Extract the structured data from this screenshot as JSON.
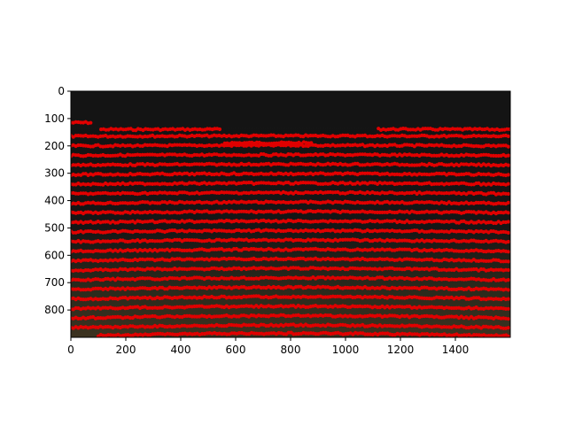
{
  "chart_data": {
    "type": "scatter",
    "title": "",
    "xlabel": "",
    "ylabel": "",
    "xlim": [
      0,
      1600
    ],
    "ylim": [
      900,
      0
    ],
    "y_inverted": true,
    "grid": false,
    "background": "image",
    "x_ticks": [
      0,
      200,
      400,
      600,
      800,
      1000,
      1200,
      1400
    ],
    "y_ticks": [
      0,
      100,
      200,
      300,
      400,
      500,
      600,
      700,
      800
    ],
    "x_tick_labels": [
      "0",
      "200",
      "400",
      "600",
      "800",
      "1000",
      "1200",
      "1400"
    ],
    "y_tick_labels": [
      "0",
      "100",
      "200",
      "300",
      "400",
      "500",
      "600",
      "700",
      "800"
    ],
    "marker_color": "#e00000",
    "image_colors": {
      "dark": "#141414",
      "soil": "#3c3220"
    },
    "series": [
      {
        "x_start": 0,
        "x_end": 80,
        "y": 115
      },
      {
        "x_start": 110,
        "x_end": 550,
        "y": 140
      },
      {
        "x_start": 560,
        "x_end": 880,
        "y": 190
      },
      {
        "x_start": 1120,
        "x_end": 1600,
        "y": 140
      },
      {
        "x_start": 0,
        "x_end": 1600,
        "y": 165
      },
      {
        "x_start": 0,
        "x_end": 1600,
        "y": 200
      },
      {
        "x_start": 0,
        "x_end": 1600,
        "y": 235
      },
      {
        "x_start": 0,
        "x_end": 1600,
        "y": 270
      },
      {
        "x_start": 0,
        "x_end": 1600,
        "y": 305
      },
      {
        "x_start": 0,
        "x_end": 1600,
        "y": 340
      },
      {
        "x_start": 0,
        "x_end": 1600,
        "y": 375
      },
      {
        "x_start": 0,
        "x_end": 1600,
        "y": 410
      },
      {
        "x_start": 0,
        "x_end": 1600,
        "y": 445
      },
      {
        "x_start": 0,
        "x_end": 1600,
        "y": 480
      },
      {
        "x_start": 0,
        "x_end": 1600,
        "y": 515
      },
      {
        "x_start": 0,
        "x_end": 1600,
        "y": 550
      },
      {
        "x_start": 0,
        "x_end": 1600,
        "y": 585
      },
      {
        "x_start": 0,
        "x_end": 1600,
        "y": 620
      },
      {
        "x_start": 0,
        "x_end": 1600,
        "y": 655
      },
      {
        "x_start": 0,
        "x_end": 1600,
        "y": 690
      },
      {
        "x_start": 0,
        "x_end": 1600,
        "y": 725
      },
      {
        "x_start": 0,
        "x_end": 1600,
        "y": 760
      },
      {
        "x_start": 0,
        "x_end": 1600,
        "y": 795
      },
      {
        "x_start": 0,
        "x_end": 1600,
        "y": 830
      },
      {
        "x_start": 0,
        "x_end": 1600,
        "y": 865
      },
      {
        "x_start": 100,
        "x_end": 1600,
        "y": 895
      }
    ]
  }
}
